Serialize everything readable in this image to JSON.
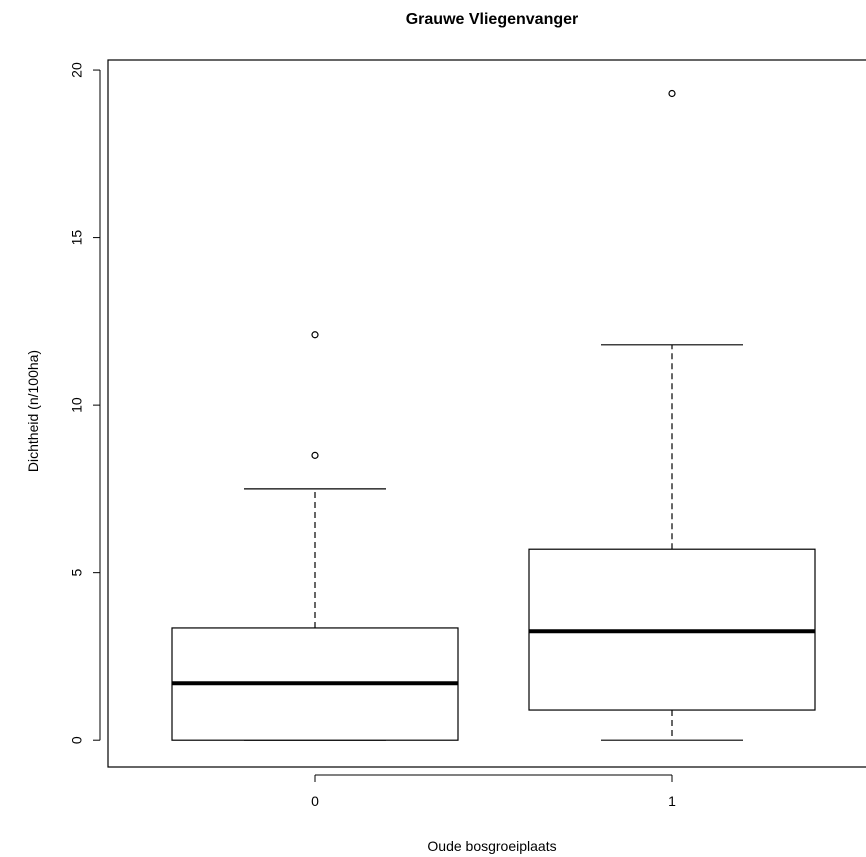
{
  "chart_data": {
    "type": "boxplot",
    "title": "Grauwe Vliegenvanger",
    "xlabel": "Oude bosgroeiplaats",
    "ylabel": "Dichtheid (n/100ha)",
    "ylim": [
      -0.8,
      20.3
    ],
    "yticks": [
      0,
      5,
      10,
      15,
      20
    ],
    "categories": [
      "0",
      "1"
    ],
    "boxes": [
      {
        "category": "0",
        "min": 0,
        "q1": 0,
        "median": 1.7,
        "q3": 3.35,
        "max": 7.5,
        "outliers": [
          8.5,
          12.1
        ]
      },
      {
        "category": "1",
        "min": 0,
        "q1": 0.9,
        "median": 3.25,
        "q3": 5.7,
        "max": 11.8,
        "outliers": [
          19.3
        ]
      }
    ],
    "grid": false
  }
}
